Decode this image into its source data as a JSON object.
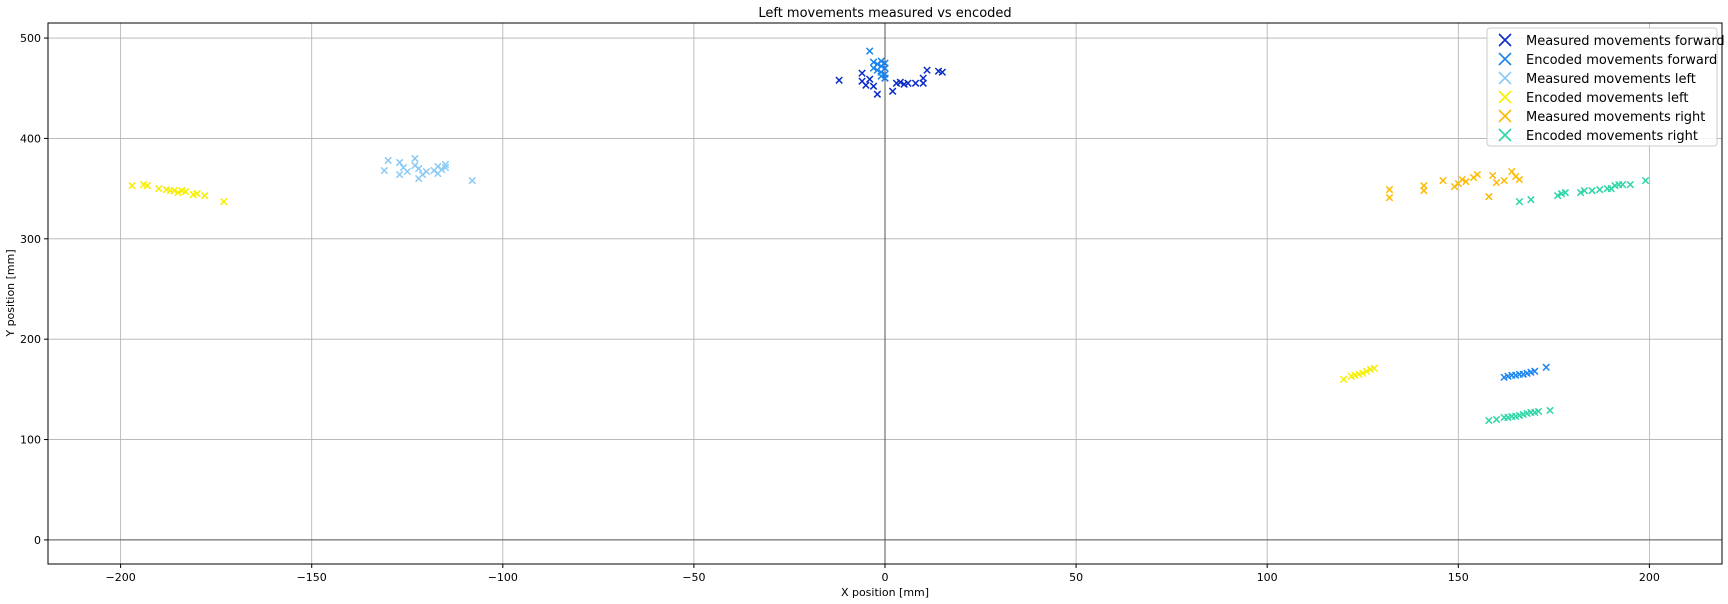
{
  "chart_data": {
    "type": "scatter",
    "title": "Left movements measured vs encoded",
    "xlabel": "X position [mm]",
    "ylabel": "Y position [mm]",
    "xlim": [
      -219,
      219
    ],
    "ylim": [
      -24,
      515
    ],
    "xticks": [
      -200,
      -150,
      -100,
      -50,
      0,
      50,
      100,
      150,
      200
    ],
    "yticks": [
      0,
      100,
      200,
      300,
      400,
      500
    ],
    "xtick_labels": [
      "−200",
      "−150",
      "−100",
      "−50",
      "0",
      "50",
      "100",
      "150",
      "200"
    ],
    "ytick_labels": [
      "0",
      "100",
      "200",
      "300",
      "400",
      "500"
    ],
    "grid": true,
    "legend_position": "top-right",
    "series": [
      {
        "name": "Measured movements forward",
        "color": "#0a2bc8",
        "points": [
          [
            -12,
            458
          ],
          [
            -6,
            465
          ],
          [
            -6,
            457
          ],
          [
            -5,
            453
          ],
          [
            -4,
            459
          ],
          [
            -3,
            452
          ],
          [
            -2,
            444
          ],
          [
            0,
            460
          ],
          [
            2,
            447
          ],
          [
            3,
            455
          ],
          [
            4,
            456
          ],
          [
            5,
            454
          ],
          [
            6,
            455
          ],
          [
            8,
            455
          ],
          [
            10,
            455
          ],
          [
            10,
            460
          ],
          [
            11,
            468
          ],
          [
            14,
            467
          ],
          [
            15,
            466
          ]
        ]
      },
      {
        "name": "Encoded movements forward",
        "color": "#1a85ee",
        "points": [
          [
            -4,
            487
          ],
          [
            -3,
            476
          ],
          [
            -3,
            470
          ],
          [
            -2,
            474
          ],
          [
            -2,
            468
          ],
          [
            -1,
            477
          ],
          [
            -1,
            472
          ],
          [
            -1,
            466
          ],
          [
            0,
            475
          ],
          [
            0,
            470
          ],
          [
            0,
            464
          ],
          [
            0,
            460
          ],
          [
            -1,
            462
          ],
          [
            162,
            162
          ],
          [
            163,
            163
          ],
          [
            164,
            164
          ],
          [
            165,
            164
          ],
          [
            166,
            165
          ],
          [
            167,
            165
          ],
          [
            168,
            166
          ],
          [
            169,
            167
          ],
          [
            170,
            168
          ],
          [
            173,
            172
          ]
        ]
      },
      {
        "name": "Measured movements left",
        "color": "#8ccaf5",
        "points": [
          [
            -131,
            368
          ],
          [
            -130,
            378
          ],
          [
            -127,
            376
          ],
          [
            -127,
            364
          ],
          [
            -126,
            371
          ],
          [
            -125,
            367
          ],
          [
            -123,
            380
          ],
          [
            -123,
            373
          ],
          [
            -122,
            370
          ],
          [
            -122,
            360
          ],
          [
            -121,
            364
          ],
          [
            -120,
            367
          ],
          [
            -118,
            368
          ],
          [
            -117,
            372
          ],
          [
            -117,
            365
          ],
          [
            -116,
            369
          ],
          [
            -115,
            374
          ],
          [
            -115,
            371
          ],
          [
            -108,
            358
          ]
        ]
      },
      {
        "name": "Encoded movements left",
        "color": "#f7ef00",
        "points": [
          [
            -197,
            353
          ],
          [
            -194,
            354
          ],
          [
            -193,
            353
          ],
          [
            -190,
            350
          ],
          [
            -188,
            349
          ],
          [
            -187,
            348
          ],
          [
            -186,
            348
          ],
          [
            -185,
            346
          ],
          [
            -184,
            348
          ],
          [
            -183,
            347
          ],
          [
            -181,
            344
          ],
          [
            -180,
            345
          ],
          [
            -178,
            343
          ],
          [
            -173,
            337
          ],
          [
            120,
            160
          ],
          [
            122,
            163
          ],
          [
            123,
            164
          ],
          [
            124,
            165
          ],
          [
            125,
            166
          ],
          [
            126,
            168
          ],
          [
            127,
            170
          ],
          [
            128,
            171
          ]
        ]
      },
      {
        "name": "Measured movements right",
        "color": "#fcbb05",
        "points": [
          [
            132,
            349
          ],
          [
            132,
            341
          ],
          [
            141,
            353
          ],
          [
            141,
            348
          ],
          [
            146,
            358
          ],
          [
            149,
            352
          ],
          [
            150,
            355
          ],
          [
            151,
            359
          ],
          [
            152,
            357
          ],
          [
            154,
            361
          ],
          [
            155,
            364
          ],
          [
            158,
            342
          ],
          [
            159,
            363
          ],
          [
            160,
            356
          ],
          [
            162,
            358
          ],
          [
            164,
            367
          ],
          [
            165,
            362
          ],
          [
            166,
            359
          ]
        ]
      },
      {
        "name": "Encoded movements right",
        "color": "#2ed6a8",
        "points": [
          [
            158,
            119
          ],
          [
            160,
            120
          ],
          [
            162,
            122
          ],
          [
            163,
            122
          ],
          [
            164,
            123
          ],
          [
            165,
            123
          ],
          [
            166,
            124
          ],
          [
            167,
            125
          ],
          [
            168,
            126
          ],
          [
            169,
            127
          ],
          [
            170,
            127
          ],
          [
            171,
            128
          ],
          [
            174,
            129
          ],
          [
            166,
            337
          ],
          [
            169,
            339
          ],
          [
            176,
            343
          ],
          [
            177,
            345
          ],
          [
            178,
            346
          ],
          [
            182,
            346
          ],
          [
            183,
            348
          ],
          [
            185,
            348
          ],
          [
            187,
            349
          ],
          [
            189,
            350
          ],
          [
            190,
            350
          ],
          [
            191,
            353
          ],
          [
            192,
            354
          ],
          [
            193,
            354
          ],
          [
            195,
            354
          ],
          [
            199,
            358
          ]
        ]
      }
    ]
  }
}
